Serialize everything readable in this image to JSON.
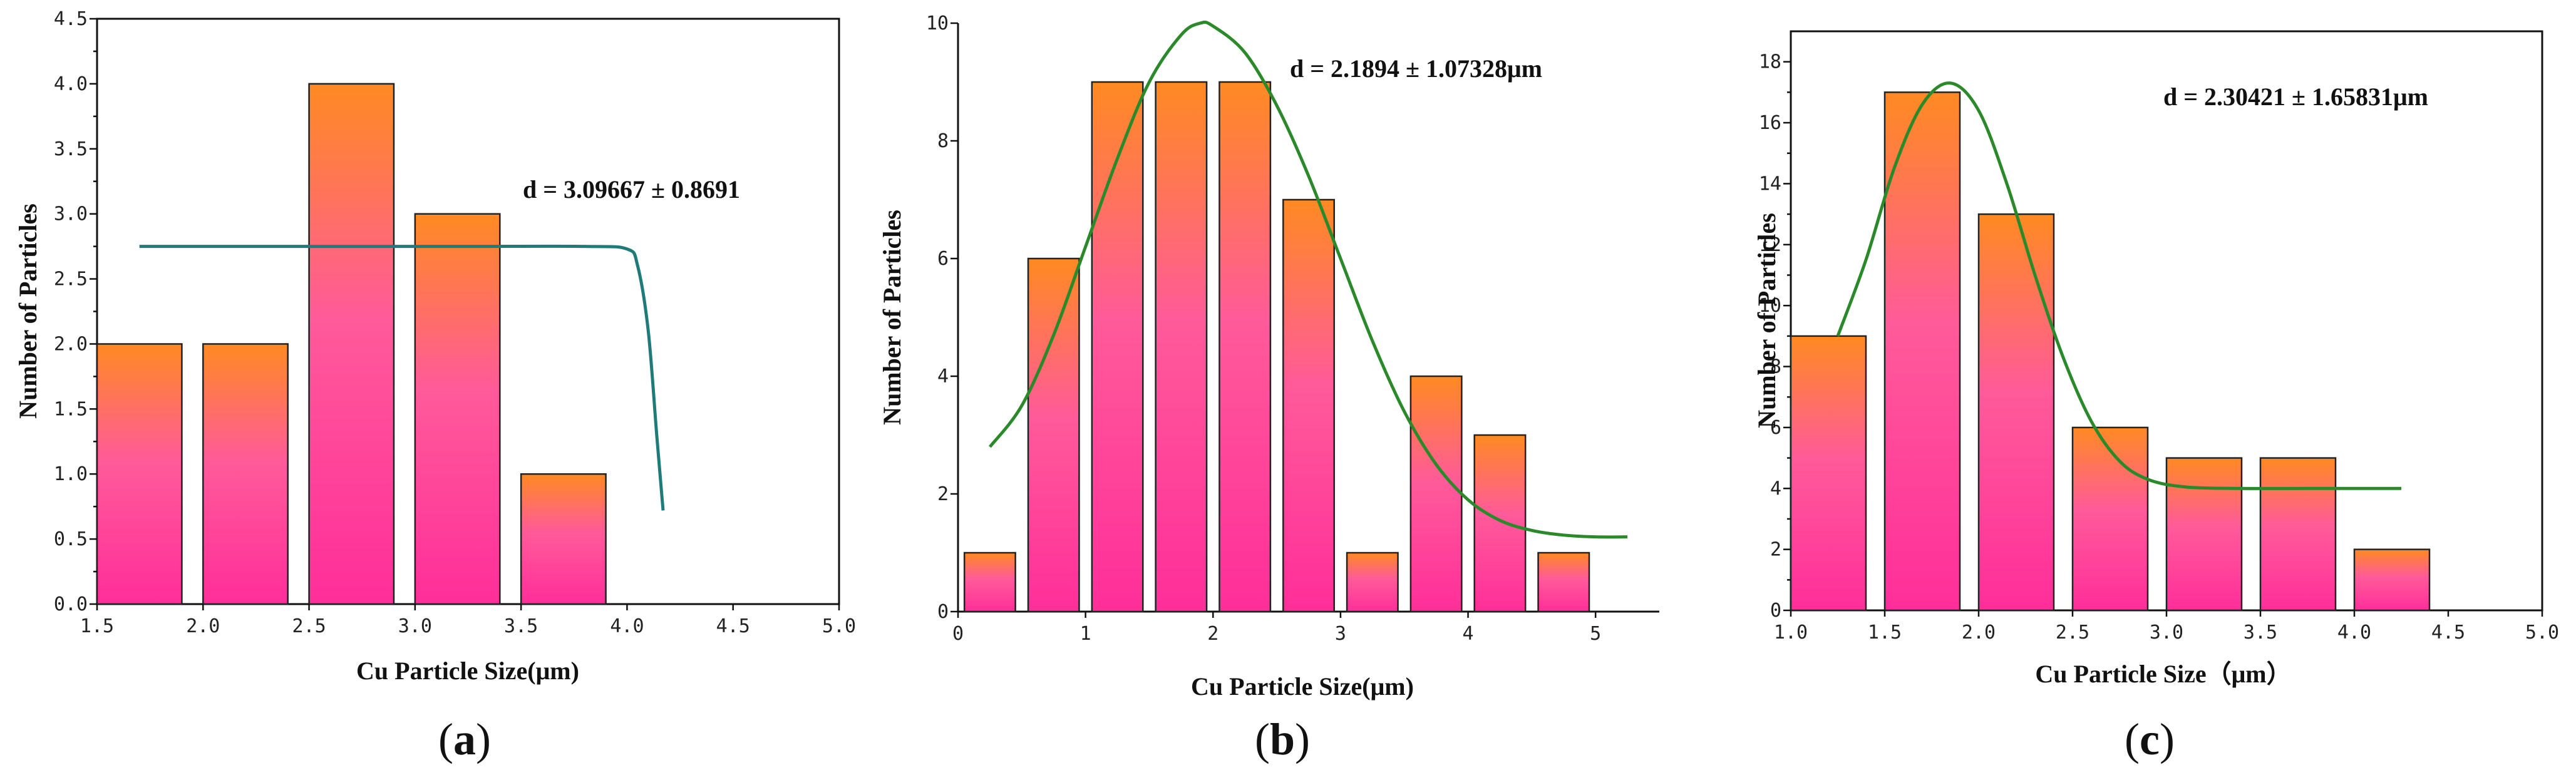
{
  "colors": {
    "bar_top": "#ff8a22",
    "bar_mid": "#ff5a9a",
    "bar_bottom": "#ff2e9a",
    "fit_a": "#1f7a7a",
    "fit_bc": "#2a8a2a"
  },
  "chart_data": [
    {
      "type": "bar",
      "panel_label": "a",
      "xlabel": "Cu Particle Size(μm)",
      "ylabel": "Number of Particles",
      "annotation": "d = 3.09667 ± 0.8691",
      "xlim": [
        1.5,
        5.0
      ],
      "ylim": [
        0,
        4.5
      ],
      "x_ticks": [
        "1.5",
        "2.0",
        "2.5",
        "3.0",
        "3.5",
        "4.0",
        "4.5",
        "5.0"
      ],
      "y_ticks": [
        "0.0",
        "0.5",
        "1.0",
        "1.5",
        "2.0",
        "2.5",
        "3.0",
        "3.5",
        "4.0",
        "4.5"
      ],
      "bars": [
        {
          "x0": 1.5,
          "x1": 1.9,
          "value": 2
        },
        {
          "x0": 2.0,
          "x1": 2.4,
          "value": 2
        },
        {
          "x0": 2.5,
          "x1": 2.9,
          "value": 4
        },
        {
          "x0": 3.0,
          "x1": 3.4,
          "value": 3
        },
        {
          "x0": 3.5,
          "x1": 3.9,
          "value": 1
        }
      ],
      "fit_curve": [
        [
          1.7,
          2.75
        ],
        [
          2.5,
          2.75
        ],
        [
          3.2,
          2.75
        ],
        [
          3.8,
          2.75
        ],
        [
          4.0,
          2.73
        ],
        [
          4.05,
          2.6
        ],
        [
          4.1,
          2.1
        ],
        [
          4.14,
          1.3
        ],
        [
          4.17,
          0.72
        ]
      ]
    },
    {
      "type": "bar",
      "panel_label": "b",
      "xlabel": "Cu Particle Size(μm)",
      "ylabel": "Number of Particles",
      "annotation": "d = 2.1894 ± 1.07328μm",
      "xlim": [
        0,
        5.5
      ],
      "ylim": [
        0,
        10
      ],
      "x_ticks": [
        "0",
        "1",
        "2",
        "3",
        "4",
        "5"
      ],
      "y_ticks": [
        "0",
        "2",
        "4",
        "6",
        "8",
        "10"
      ],
      "bars": [
        {
          "x0": 0.05,
          "x1": 0.45,
          "value": 1
        },
        {
          "x0": 0.55,
          "x1": 0.95,
          "value": 6
        },
        {
          "x0": 1.05,
          "x1": 1.45,
          "value": 9
        },
        {
          "x0": 1.55,
          "x1": 1.95,
          "value": 9
        },
        {
          "x0": 2.05,
          "x1": 2.45,
          "value": 9
        },
        {
          "x0": 2.55,
          "x1": 2.95,
          "value": 7
        },
        {
          "x0": 3.05,
          "x1": 3.45,
          "value": 1
        },
        {
          "x0": 3.55,
          "x1": 3.95,
          "value": 4
        },
        {
          "x0": 4.05,
          "x1": 4.45,
          "value": 3
        },
        {
          "x0": 4.55,
          "x1": 4.95,
          "value": 1
        }
      ],
      "fit_curve": [
        [
          0.25,
          2.8
        ],
        [
          0.5,
          3.5
        ],
        [
          0.75,
          4.7
        ],
        [
          1.0,
          6.2
        ],
        [
          1.25,
          7.7
        ],
        [
          1.5,
          9.0
        ],
        [
          1.75,
          9.8
        ],
        [
          1.9,
          10.0
        ],
        [
          2.0,
          9.95
        ],
        [
          2.25,
          9.5
        ],
        [
          2.5,
          8.6
        ],
        [
          2.75,
          7.4
        ],
        [
          3.0,
          6.0
        ],
        [
          3.25,
          4.6
        ],
        [
          3.5,
          3.4
        ],
        [
          3.75,
          2.5
        ],
        [
          4.0,
          1.9
        ],
        [
          4.25,
          1.55
        ],
        [
          4.5,
          1.38
        ],
        [
          4.75,
          1.3
        ],
        [
          5.0,
          1.27
        ],
        [
          5.25,
          1.27
        ]
      ]
    },
    {
      "type": "bar",
      "panel_label": "c",
      "xlabel": "Cu Particle Size（μm）",
      "ylabel": "Number of Particles",
      "annotation": "d = 2.30421 ± 1.65831μm",
      "xlim": [
        1.0,
        5.0
      ],
      "ylim": [
        0,
        19
      ],
      "x_ticks": [
        "1.0",
        "1.5",
        "2.0",
        "2.5",
        "3.0",
        "3.5",
        "4.0",
        "4.5",
        "5.0"
      ],
      "y_ticks": [
        "0",
        "2",
        "4",
        "6",
        "8",
        "10",
        "12",
        "14",
        "16",
        "18"
      ],
      "bars": [
        {
          "x0": 1.0,
          "x1": 1.4,
          "value": 9
        },
        {
          "x0": 1.5,
          "x1": 1.9,
          "value": 17
        },
        {
          "x0": 2.0,
          "x1": 2.4,
          "value": 13
        },
        {
          "x0": 2.5,
          "x1": 2.9,
          "value": 6
        },
        {
          "x0": 3.0,
          "x1": 3.4,
          "value": 5
        },
        {
          "x0": 3.5,
          "x1": 3.9,
          "value": 5
        },
        {
          "x0": 4.0,
          "x1": 4.4,
          "value": 2
        }
      ],
      "fit_curve": [
        [
          1.25,
          9.0
        ],
        [
          1.4,
          11.5
        ],
        [
          1.55,
          14.5
        ],
        [
          1.7,
          16.6
        ],
        [
          1.85,
          17.3
        ],
        [
          2.0,
          16.4
        ],
        [
          2.15,
          14.0
        ],
        [
          2.3,
          11.0
        ],
        [
          2.45,
          8.3
        ],
        [
          2.6,
          6.2
        ],
        [
          2.75,
          4.9
        ],
        [
          2.9,
          4.3
        ],
        [
          3.1,
          4.05
        ],
        [
          3.4,
          4.0
        ],
        [
          3.8,
          4.0
        ],
        [
          4.25,
          4.0
        ]
      ]
    }
  ]
}
